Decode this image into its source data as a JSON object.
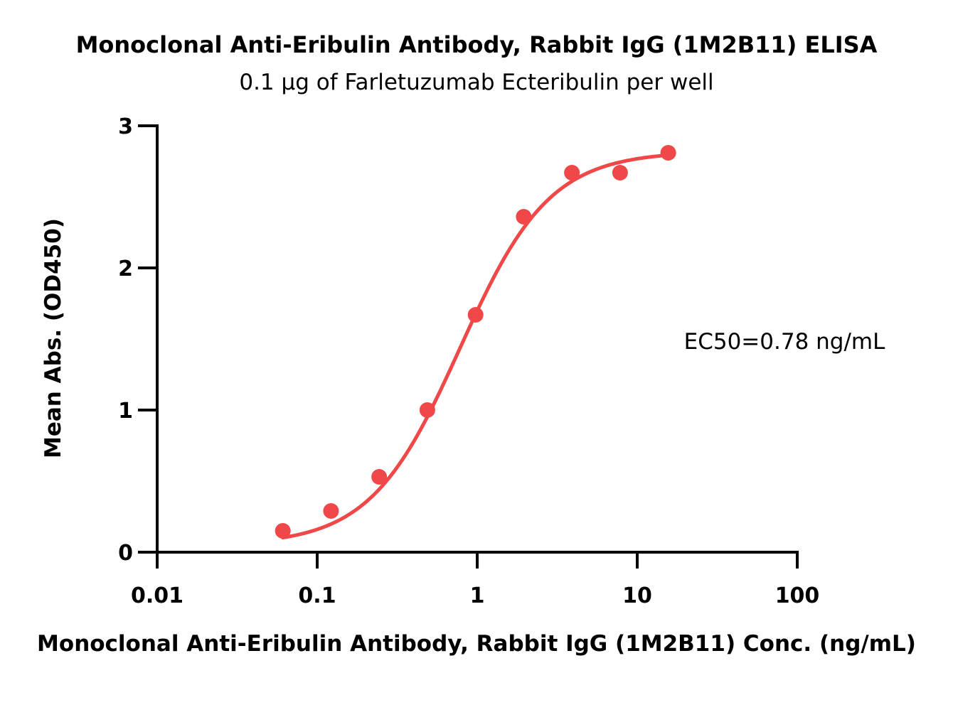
{
  "chart_data": {
    "type": "scatter",
    "title": "Monoclonal Anti-Eribulin Antibody, Rabbit IgG (1M2B11) ELISA",
    "subtitle": "0.1 µg of Farletuzumab Ecteribulin per well",
    "xlabel": "Monoclonal Anti-Eribulin Antibody, Rabbit IgG (1M2B11) Conc. (ng/mL)",
    "ylabel": "Mean Abs. (OD450)",
    "x_scale": "log",
    "xlim": [
      0.01,
      100
    ],
    "ylim": [
      0,
      3
    ],
    "x_ticks": [
      {
        "value": 0.01,
        "label": "0.01"
      },
      {
        "value": 0.1,
        "label": "0.1"
      },
      {
        "value": 1,
        "label": "1"
      },
      {
        "value": 10,
        "label": "10"
      },
      {
        "value": 100,
        "label": "100"
      }
    ],
    "y_ticks": [
      {
        "value": 0,
        "label": "0"
      },
      {
        "value": 1,
        "label": "1"
      },
      {
        "value": 2,
        "label": "2"
      },
      {
        "value": 3,
        "label": "3"
      }
    ],
    "grid": false,
    "color": "#f04848",
    "series": [
      {
        "x": [
          0.061,
          0.122,
          0.244,
          0.488,
          0.977,
          1.953,
          3.906,
          7.813,
          15.625
        ],
        "y": [
          0.15,
          0.29,
          0.53,
          1.0,
          1.67,
          2.36,
          2.67,
          2.67,
          2.81
        ]
      }
    ],
    "fit": {
      "model": "4PL",
      "bottom": 0.05,
      "top": 2.82,
      "ec50": 0.78,
      "hill": 1.55,
      "x_range": [
        0.061,
        15.625
      ]
    },
    "annotation": "EC50=0.78 ng/mL"
  }
}
